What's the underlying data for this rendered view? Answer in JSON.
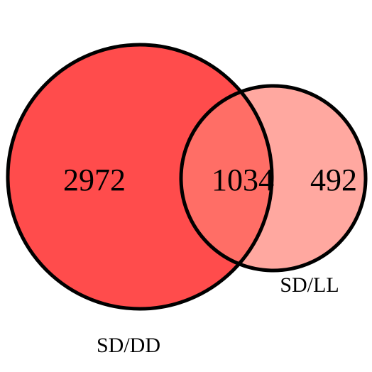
{
  "venn": {
    "sets": [
      {
        "label": "SD/DD",
        "only_count": "2972",
        "color": "#ff4c4c"
      },
      {
        "label": "SD/LL",
        "only_count": "492",
        "color": "#ffa8a0"
      }
    ],
    "intersection": {
      "count": "1034",
      "color": "#ff6e66"
    },
    "stroke_color": "#000000"
  }
}
